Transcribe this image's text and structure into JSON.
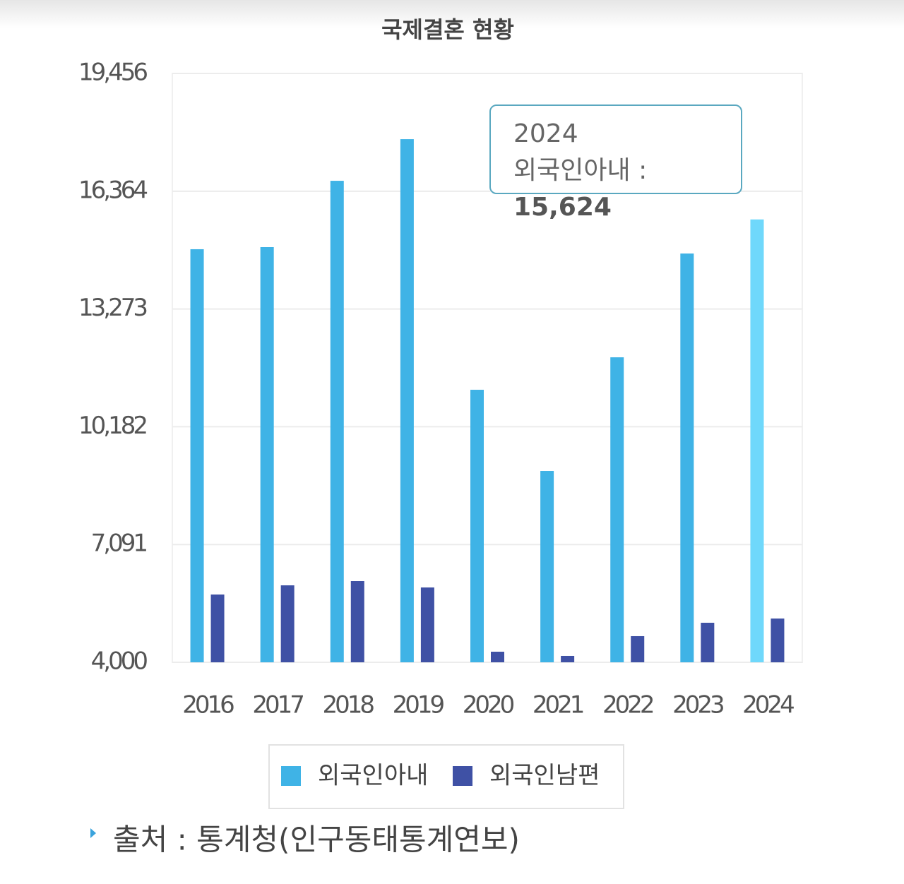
{
  "chart_data": {
    "type": "bar",
    "title": "국제결혼 현황",
    "categories": [
      "2016",
      "2017",
      "2018",
      "2019",
      "2020",
      "2021",
      "2022",
      "2023",
      "2024"
    ],
    "series": [
      {
        "name": "외국인아내",
        "color": "#3fb3e6",
        "colors": [
          "#3fb3e6",
          "#3fb3e6",
          "#3fb3e6",
          "#3fb3e6",
          "#3fb3e6",
          "#3fb3e6",
          "#3fb3e6",
          "#3fb3e6",
          "#6fd8fb"
        ],
        "values": [
          14842,
          14897,
          16638,
          17731,
          11153,
          9022,
          12005,
          14729,
          15624
        ],
        "value_labels": [
          null,
          null,
          null,
          null,
          null,
          null,
          null,
          null,
          "15,624"
        ]
      },
      {
        "name": "외국인남편",
        "color": "#3f51a5",
        "values": [
          5779,
          6020,
          6131,
          5964,
          4278,
          4167,
          4686,
          5038,
          5149
        ]
      }
    ],
    "ylim": [
      4000,
      19456
    ],
    "yticks": [
      {
        "value": 4000,
        "label": "4,000"
      },
      {
        "value": 7091,
        "label": "7,091"
      },
      {
        "value": 10182,
        "label": "10,182"
      },
      {
        "value": 13273,
        "label": "13,273"
      },
      {
        "value": 16364,
        "label": "16,364"
      },
      {
        "value": 19456,
        "label": "19,456"
      }
    ],
    "grid": true,
    "source": "출처 : 통계청(인구동태통계연보)"
  }
}
